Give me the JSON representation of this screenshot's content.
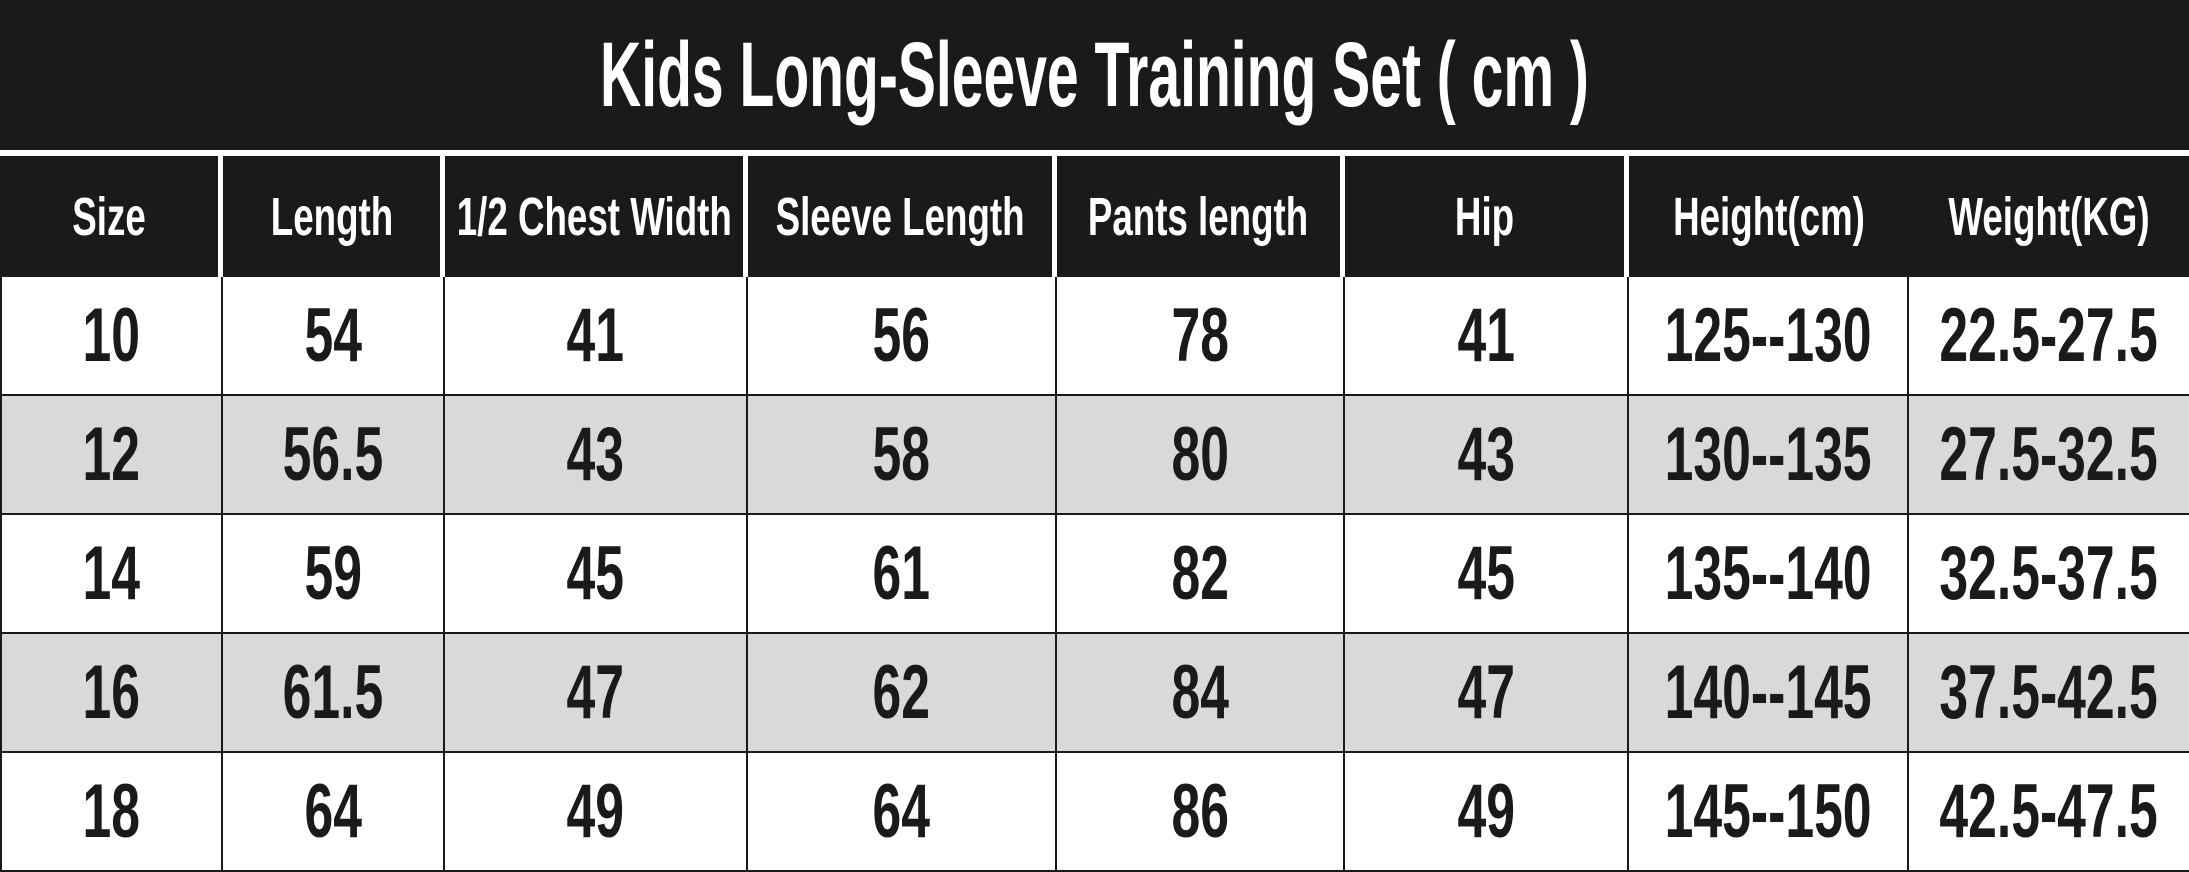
{
  "chart_data": {
    "type": "table",
    "title": "Kids Long-Sleeve Training Set ( cm )",
    "columns": [
      "Size",
      "Length",
      "1/2 Chest Width",
      "Sleeve Length",
      "Pants length",
      "Hip",
      "Height(cm)",
      "Weight(KG)"
    ],
    "rows": [
      [
        "10",
        "54",
        "41",
        "56",
        "78",
        "41",
        "125--130",
        "22.5-27.5"
      ],
      [
        "12",
        "56.5",
        "43",
        "58",
        "80",
        "43",
        "130--135",
        "27.5-32.5"
      ],
      [
        "14",
        "59",
        "45",
        "61",
        "82",
        "45",
        "135--140",
        "32.5-37.5"
      ],
      [
        "16",
        "61.5",
        "47",
        "62",
        "84",
        "47",
        "140--145",
        "37.5-42.5"
      ],
      [
        "18",
        "64",
        "49",
        "64",
        "86",
        "49",
        "145--150",
        "42.5-47.5"
      ]
    ],
    "layout": {
      "header_background": "#1a1a1a",
      "header_text_color": "#ffffff",
      "row_background": "#ffffff",
      "row_alt_background": "#d9d9d9",
      "body_text_color": "#1a1a1a",
      "alternating_rows": true
    }
  },
  "colors": {
    "black": "#1a1a1a",
    "white": "#ffffff",
    "gray_row": "#d9d9d9"
  }
}
